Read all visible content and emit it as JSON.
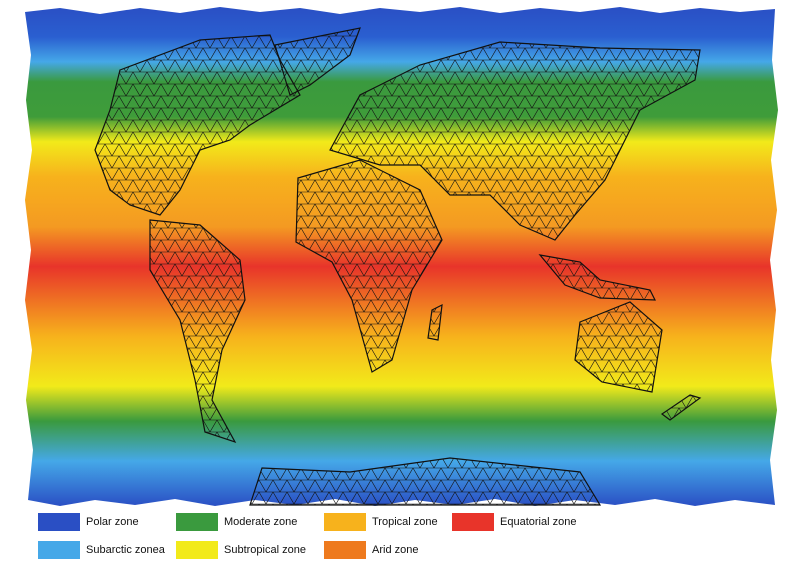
{
  "legend": [
    {
      "label": "Polar zone",
      "color": "#2a4fc4"
    },
    {
      "label": "Moderate zone",
      "color": "#3a9a3e"
    },
    {
      "label": "Tropical zone",
      "color": "#f7b21c"
    },
    {
      "label": "Equatorial zone",
      "color": "#e8342a"
    },
    {
      "label": "Subarctic zonea",
      "color": "#45a8e8"
    },
    {
      "label": "Subtropical zone",
      "color": "#f2ea1a"
    },
    {
      "label": "Arid zone",
      "color": "#ee7a1e"
    }
  ]
}
